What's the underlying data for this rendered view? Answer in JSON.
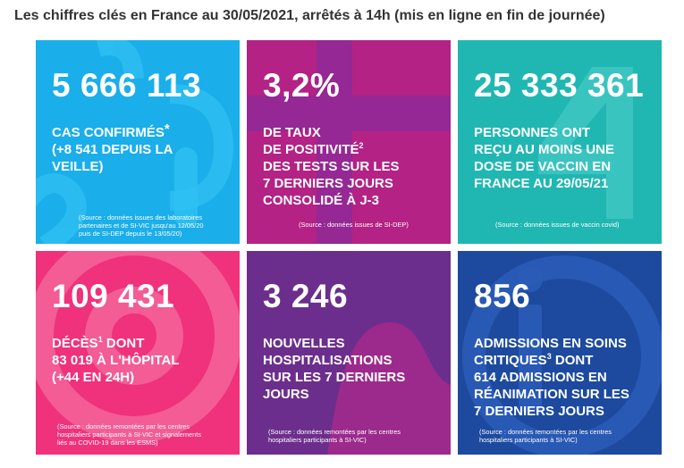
{
  "header": {
    "title": "Les chiffres clés en France au 30/05/2021, arrêtés à 14h (mis en ligne en fin de journée)"
  },
  "colors": {
    "cases": "#1aaeea",
    "positivity": "#b32284",
    "vaccine": "#20b7b2",
    "deaths": "#f0317b",
    "hospital": "#6c2e8c",
    "icu": "#1d4a9e"
  },
  "tiles": [
    {
      "id": "cases",
      "icon": "number-2020-background",
      "value": "5 666 113",
      "lines": [
        "Cas confirmés",
        "(+8 541 depuis la",
        "veille)"
      ],
      "sup": "*",
      "source": [
        "(Source : données issues des laboratoires",
        "partenaires et de SI-VIC jusqu'au 12/05/20",
        "puis de SI-DEP depuis le 13/05/20)"
      ]
    },
    {
      "id": "positivity",
      "icon": "plus-cross-background",
      "value": "3,2%",
      "lines": [
        "de taux",
        "de positivité",
        "des tests sur les",
        "7 derniers jours",
        "consolidé à J-3"
      ],
      "sup": "2",
      "source": [
        "(Source : données issues de SI-DEP)"
      ]
    },
    {
      "id": "vaccine",
      "icon": "number-4-background",
      "value": "25 333 361",
      "lines": [
        "Personnes ont",
        "reçu au moins une",
        "dose de vaccin en",
        "France au 29/05/21"
      ],
      "source": [
        "(Source : données issues de vaccin covid)"
      ]
    },
    {
      "id": "deaths",
      "icon": "target-circles-background",
      "value": "109 431",
      "lines": [
        "Décès",
        "83 019 à l'hôpital",
        "(+44 en 24h)"
      ],
      "line1_rest": " dont",
      "sup": "1",
      "source": [
        "(Source : données remontées par les centres",
        "hospitaliers participants à SI-VIC et signalements",
        "liés au COVID-19 dans les ESMS)"
      ]
    },
    {
      "id": "hospital",
      "icon": "wave-blob-background",
      "value": "3 246",
      "lines": [
        "Nouvelles",
        "hospitalisations",
        "sur les 7 derniers",
        "jours"
      ],
      "source": [
        "(Source : données remontées par les centres",
        "hospitaliers participants à SI-VIC)"
      ]
    },
    {
      "id": "icu",
      "icon": "info-i-background",
      "value": "856",
      "lines": [
        "Admissions en soins",
        "critiques",
        "614 admissions en",
        "réanimation sur les",
        "7 derniers jours"
      ],
      "line2_rest": " dont",
      "sup": "3",
      "source": [
        "(Source : données remontées par les centres",
        "hospitaliers participants à SI-VIC)"
      ]
    }
  ]
}
